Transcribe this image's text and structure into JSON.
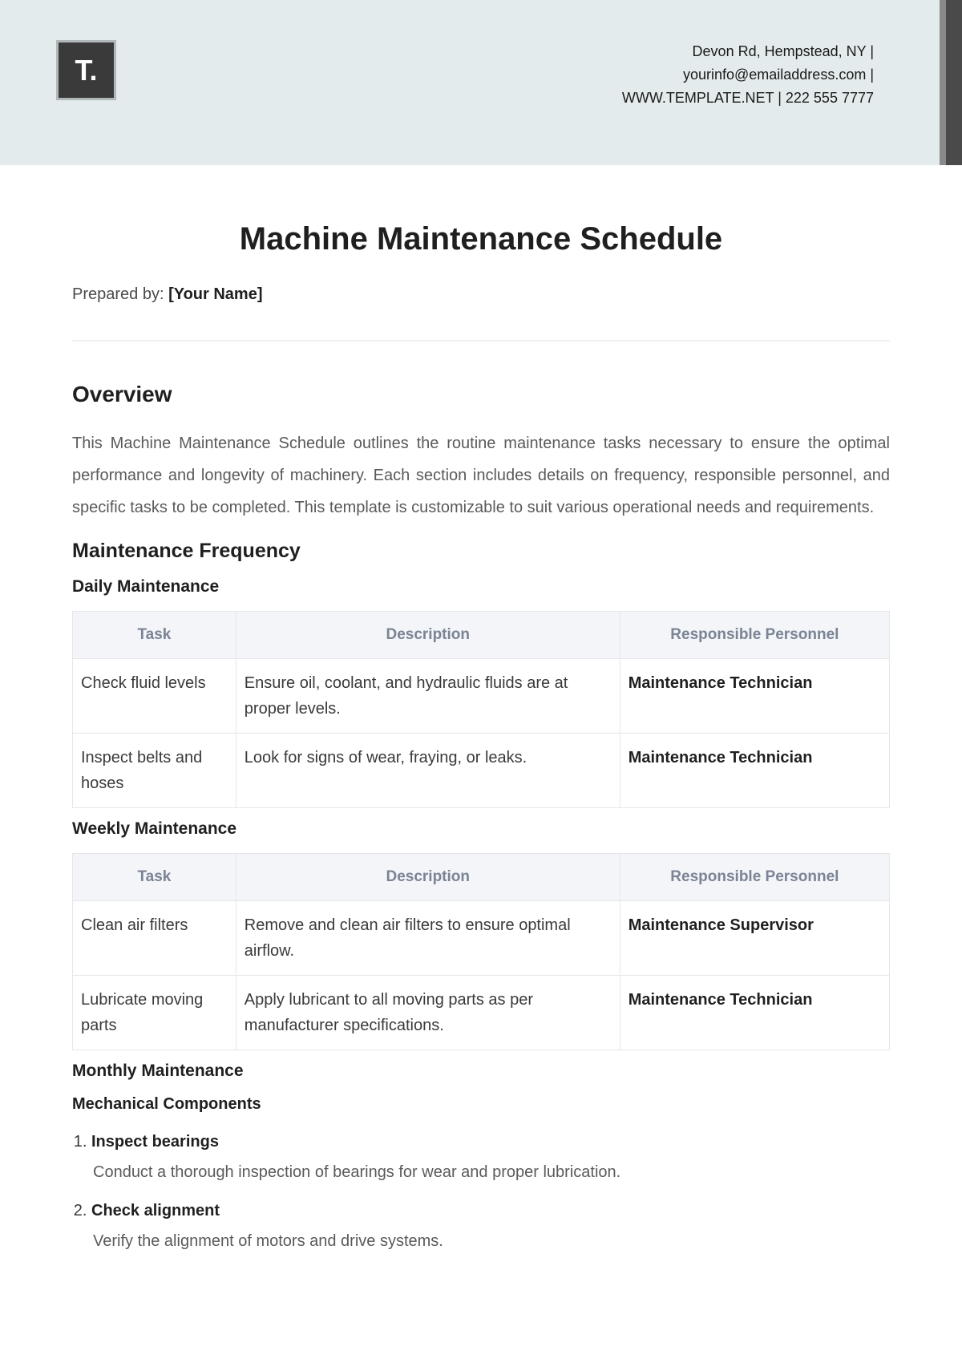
{
  "header": {
    "logo_text": "T.",
    "contact_line1": "Devon Rd, Hempstead, NY |",
    "contact_line2": "yourinfo@emailaddress.com |",
    "contact_line3": "WWW.TEMPLATE.NET | 222 555 7777"
  },
  "document": {
    "title": "Machine Maintenance Schedule",
    "prepared_by_label": "Prepared by:",
    "prepared_by_value": "[Your Name]",
    "overview_heading": "Overview",
    "overview_text": "This Machine Maintenance Schedule outlines the routine maintenance tasks necessary to ensure the optimal performance and longevity of machinery. Each section includes details on frequency, responsible personnel, and specific tasks to be completed. This template is customizable to suit various operational needs and requirements.",
    "frequency_heading": "Maintenance Frequency"
  },
  "tables": {
    "columns": {
      "task": "Task",
      "description": "Description",
      "personnel": "Responsible Personnel"
    },
    "daily": {
      "heading": "Daily Maintenance",
      "rows": [
        {
          "task": "Check fluid levels",
          "description": "Ensure oil, coolant, and hydraulic fluids are at proper levels.",
          "personnel": "Maintenance Technician"
        },
        {
          "task": "Inspect belts and hoses",
          "description": "Look for signs of wear, fraying, or leaks.",
          "personnel": "Maintenance Technician"
        }
      ]
    },
    "weekly": {
      "heading": "Weekly Maintenance",
      "rows": [
        {
          "task": "Clean air filters",
          "description": "Remove and clean air filters to ensure optimal airflow.",
          "personnel": "Maintenance Supervisor"
        },
        {
          "task": "Lubricate moving parts",
          "description": "Apply lubricant to all moving parts as per manufacturer specifications.",
          "personnel": "Maintenance Technician"
        }
      ]
    },
    "monthly": {
      "heading": "Monthly Maintenance",
      "mech_heading": "Mechanical Components",
      "items": [
        {
          "title": "Inspect bearings",
          "desc": "Conduct a thorough inspection of bearings for wear and proper lubrication."
        },
        {
          "title": "Check alignment",
          "desc": "Verify the alignment of motors and drive systems."
        }
      ]
    }
  },
  "styles": {
    "header_bg": "#e4ebec",
    "accent_dark": "#4a4a4a",
    "accent_gray": "#8a8a8a",
    "text_primary": "#1f1f1f",
    "text_secondary": "#5a5a5a",
    "table_header_bg": "#f3f5f8",
    "table_header_color": "#7a8494",
    "border_color": "#e4e6ea"
  }
}
